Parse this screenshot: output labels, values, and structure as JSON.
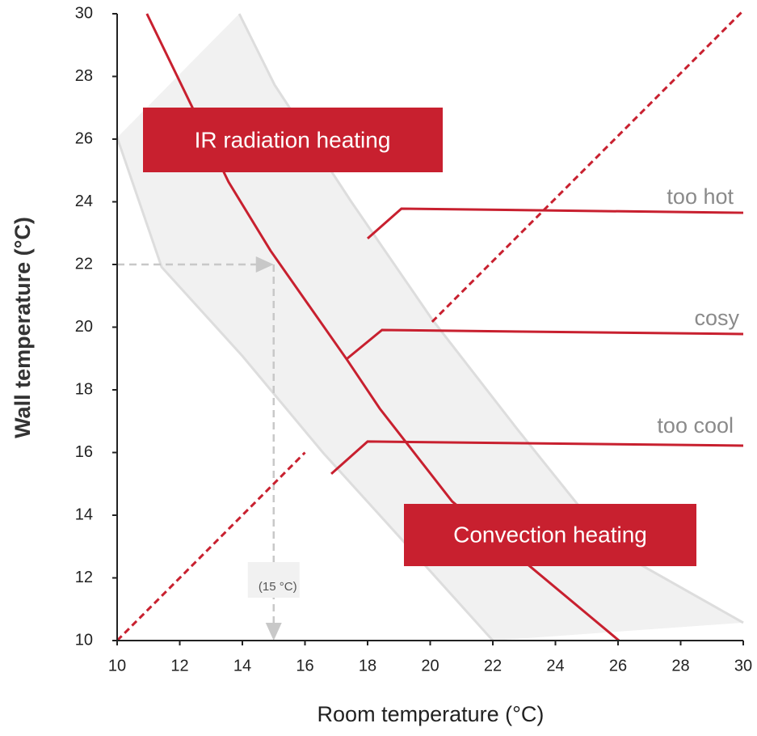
{
  "chart_data": {
    "type": "line",
    "xlabel": "Room temperature (°C)",
    "ylabel": "Wall temperature (°C)",
    "xlim": [
      10,
      30
    ],
    "ylim": [
      10,
      30
    ],
    "xticks": [
      10,
      12,
      14,
      16,
      18,
      20,
      22,
      24,
      26,
      28,
      30
    ],
    "yticks": [
      10,
      12,
      14,
      16,
      18,
      20,
      22,
      24,
      26,
      28,
      30
    ],
    "band": {
      "color": "#f1f1f1",
      "edge_color": "#dddddd",
      "upper": {
        "x": [
          13.9,
          15.03,
          17.48,
          20.06,
          22.77,
          25.87,
          30
        ],
        "values": [
          30,
          27.73,
          24,
          20.25,
          16.76,
          12.9,
          10.57
        ]
      },
      "lower": {
        "x": [
          10,
          11.42,
          14,
          16.58,
          19.16,
          22
        ],
        "values": [
          26.05,
          21.92,
          19.08,
          15.99,
          13.15,
          10
        ]
      }
    },
    "series": [
      {
        "color": "#c8202f",
        "dashed": false,
        "x": [
          10.95,
          13.56,
          14.9,
          17.35,
          18.39,
          20.7,
          26.03
        ],
        "values": [
          30,
          24.63,
          22.44,
          18.95,
          17.4,
          14.44,
          10
        ]
      },
      {
        "color": "#c8202f",
        "dashed": true,
        "x": [
          10,
          16,
          18,
          20.06,
          30
        ],
        "values": [
          10,
          16,
          null,
          20.17,
          30.1
        ]
      },
      {
        "name": "too hot",
        "color": "#c8202f",
        "dashed": false,
        "x": [
          18,
          19.08,
          30
        ],
        "values": [
          22.83,
          23.78,
          23.65
        ]
      },
      {
        "name": "cosy",
        "color": "#c8202f",
        "dashed": false,
        "x": [
          17.35,
          18.46,
          30
        ],
        "values": [
          19.0,
          19.91,
          19.78
        ]
      },
      {
        "name": "too cool",
        "color": "#c8202f",
        "dashed": false,
        "x": [
          16.84,
          18,
          30
        ],
        "values": [
          15.32,
          16.35,
          16.22
        ]
      }
    ],
    "guide": {
      "x": 15,
      "y": 22,
      "color": "#c8c8c8",
      "label": "(15 °C)"
    },
    "annotations": [
      "IR radiation heating",
      "Convection heating"
    ]
  }
}
